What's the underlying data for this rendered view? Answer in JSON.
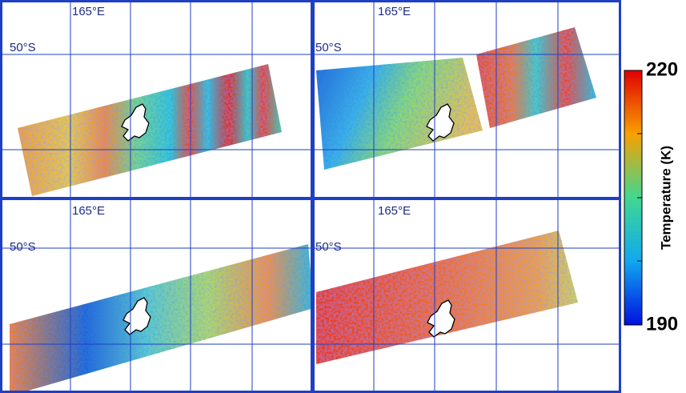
{
  "panels": [
    {
      "lon_label": "165°E",
      "lat_label": "50°S"
    },
    {
      "lon_label": "165°E",
      "lat_label": "50°S"
    },
    {
      "lon_label": "165°E",
      "lat_label": "50°S"
    },
    {
      "lon_label": "165°E",
      "lat_label": "50°S"
    }
  ],
  "colorbar": {
    "label": "Temperature (K)",
    "lim": [
      190,
      220
    ],
    "ticks": [
      190,
      220
    ]
  }
}
